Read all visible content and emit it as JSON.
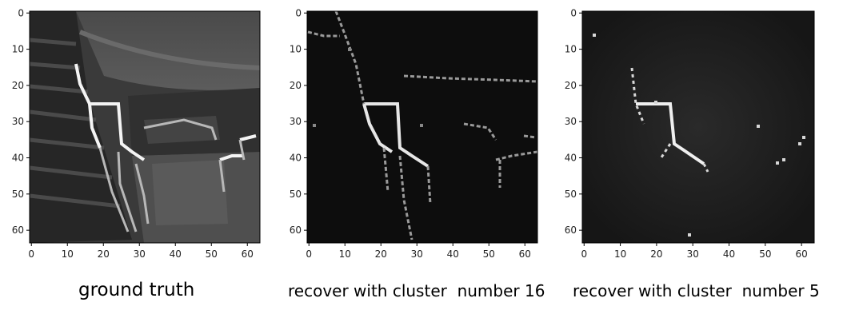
{
  "panels": [
    {
      "id": "ground-truth",
      "caption": "ground truth",
      "x_ticks": [
        "0",
        "10",
        "20",
        "30",
        "40",
        "50",
        "60"
      ],
      "y_ticks": [
        "0",
        "10",
        "20",
        "30",
        "40",
        "50",
        "60"
      ]
    },
    {
      "id": "cluster-16",
      "caption": "recover with cluster  number 16",
      "x_ticks": [
        "0",
        "10",
        "20",
        "30",
        "40",
        "50",
        "60"
      ],
      "y_ticks": [
        "0",
        "10",
        "20",
        "30",
        "40",
        "50",
        "60"
      ]
    },
    {
      "id": "cluster-5",
      "caption": "recover with cluster  number 5",
      "x_ticks": [
        "0",
        "10",
        "20",
        "30",
        "40",
        "50",
        "60"
      ],
      "y_ticks": [
        "0",
        "10",
        "20",
        "30",
        "40",
        "50",
        "60"
      ]
    }
  ]
}
